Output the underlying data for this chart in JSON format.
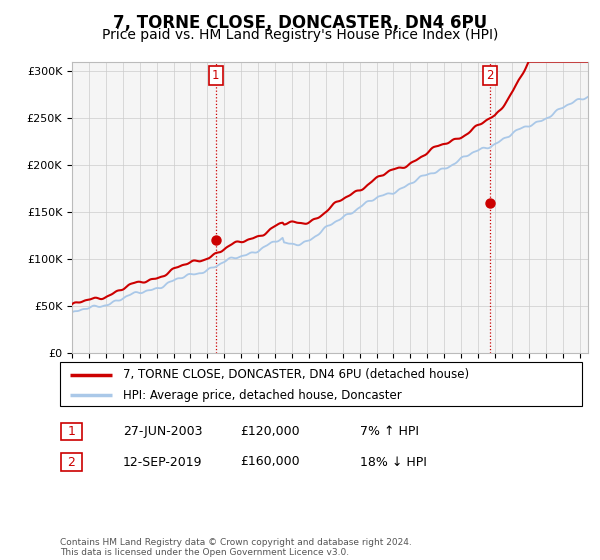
{
  "title": "7, TORNE CLOSE, DONCASTER, DN4 6PU",
  "subtitle": "Price paid vs. HM Land Registry's House Price Index (HPI)",
  "title_fontsize": 12,
  "subtitle_fontsize": 10,
  "background_color": "#ffffff",
  "plot_bg_color": "#f5f5f5",
  "grid_color": "#cccccc",
  "hpi_color": "#aac8e8",
  "price_color": "#cc0000",
  "sale1_x": 2003.49,
  "sale2_x": 2019.71,
  "sale1_price_y": 120000,
  "sale2_price_y": 160000,
  "sale1_date": "27-JUN-2003",
  "sale1_price": "£120,000",
  "sale1_pct": "7% ↑ HPI",
  "sale2_date": "12-SEP-2019",
  "sale2_price": "£160,000",
  "sale2_pct": "18% ↓ HPI",
  "legend1": "7, TORNE CLOSE, DONCASTER, DN4 6PU (detached house)",
  "legend2": "HPI: Average price, detached house, Doncaster",
  "footnote": "Contains HM Land Registry data © Crown copyright and database right 2024.\nThis data is licensed under the Open Government Licence v3.0.",
  "ylim": [
    0,
    310000
  ],
  "yticks": [
    0,
    50000,
    100000,
    150000,
    200000,
    250000,
    300000
  ],
  "xmin": 1995,
  "xmax": 2025.5
}
